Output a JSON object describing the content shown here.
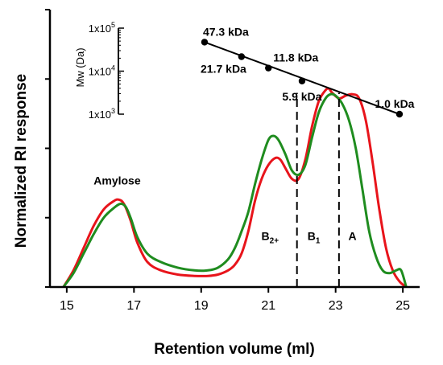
{
  "chart_data": {
    "type": "line",
    "xlabel": "Retention volume (ml)",
    "ylabel": "Normalized RI response",
    "xlim": [
      14.5,
      25.5
    ],
    "xticks": [
      15,
      17,
      19,
      21,
      23,
      25
    ],
    "ylim": [
      0,
      1
    ],
    "grid": false,
    "series": [
      {
        "color": "#e8141b",
        "x": [
          14.9,
          15.2,
          15.5,
          15.8,
          16.1,
          16.4,
          16.55,
          16.7,
          16.9,
          17.1,
          17.4,
          17.8,
          18.3,
          18.8,
          19.2,
          19.5,
          19.8,
          20.0,
          20.2,
          20.4,
          20.6,
          20.8,
          21.0,
          21.2,
          21.35,
          21.5,
          21.7,
          21.9,
          22.1,
          22.3,
          22.5,
          22.7,
          22.8,
          22.9,
          23.1,
          23.3,
          23.5,
          23.7,
          23.9,
          24.1,
          24.3,
          24.5,
          24.7,
          24.9,
          25.1
        ],
        "y": [
          0.0,
          0.06,
          0.14,
          0.22,
          0.28,
          0.31,
          0.315,
          0.3,
          0.24,
          0.16,
          0.09,
          0.06,
          0.045,
          0.04,
          0.04,
          0.045,
          0.06,
          0.08,
          0.12,
          0.2,
          0.31,
          0.39,
          0.44,
          0.465,
          0.46,
          0.43,
          0.39,
          0.39,
          0.46,
          0.58,
          0.67,
          0.71,
          0.715,
          0.7,
          0.68,
          0.69,
          0.695,
          0.68,
          0.6,
          0.45,
          0.28,
          0.14,
          0.06,
          0.02,
          0.0
        ]
      },
      {
        "color": "#1f8c1f",
        "x": [
          14.9,
          15.2,
          15.5,
          15.8,
          16.1,
          16.4,
          16.6,
          16.75,
          16.9,
          17.1,
          17.4,
          17.8,
          18.3,
          18.8,
          19.2,
          19.5,
          19.8,
          20.0,
          20.2,
          20.4,
          20.6,
          20.8,
          21.0,
          21.15,
          21.3,
          21.5,
          21.7,
          21.9,
          22.1,
          22.3,
          22.5,
          22.7,
          22.85,
          23.0,
          23.2,
          23.4,
          23.6,
          23.8,
          24.0,
          24.2,
          24.4,
          24.6,
          24.8,
          24.95,
          25.1
        ],
        "y": [
          0.0,
          0.05,
          0.12,
          0.19,
          0.25,
          0.285,
          0.3,
          0.29,
          0.25,
          0.18,
          0.12,
          0.09,
          0.07,
          0.06,
          0.06,
          0.07,
          0.1,
          0.14,
          0.2,
          0.27,
          0.37,
          0.46,
          0.53,
          0.545,
          0.53,
          0.48,
          0.42,
          0.405,
          0.44,
          0.54,
          0.63,
          0.68,
          0.695,
          0.69,
          0.66,
          0.6,
          0.5,
          0.35,
          0.2,
          0.11,
          0.06,
          0.05,
          0.06,
          0.06,
          0.0
        ]
      }
    ],
    "vlines": [
      21.85,
      23.1
    ],
    "annotations": [
      {
        "text": "Amylose",
        "x": 16.5,
        "y": 0.37,
        "sub": ""
      },
      {
        "text": "B",
        "x": 21.05,
        "y": 0.17,
        "sub": "2+"
      },
      {
        "text": "B",
        "x": 22.35,
        "y": 0.17,
        "sub": "1"
      },
      {
        "text": "A",
        "x": 23.5,
        "y": 0.17,
        "sub": ""
      }
    ],
    "inset": {
      "type": "scatter",
      "ylabel": "Mw (Da)",
      "yscale": "log",
      "ylim": [
        1000,
        100000
      ],
      "ytick_base": "1x10",
      "ytick_exponents": [
        "5",
        "4",
        "3"
      ],
      "points": [
        {
          "x": 19.1,
          "mw": 47300,
          "label": "47.3 kDa"
        },
        {
          "x": 20.2,
          "mw": 21700,
          "label": "21.7 kDa"
        },
        {
          "x": 21.0,
          "mw": 11800,
          "label": "11.8 kDa"
        },
        {
          "x": 22.0,
          "mw": 5900,
          "label": "5.9 kDa"
        },
        {
          "x": 24.9,
          "mw": 1000,
          "label": "1.0 kDa"
        }
      ]
    }
  }
}
